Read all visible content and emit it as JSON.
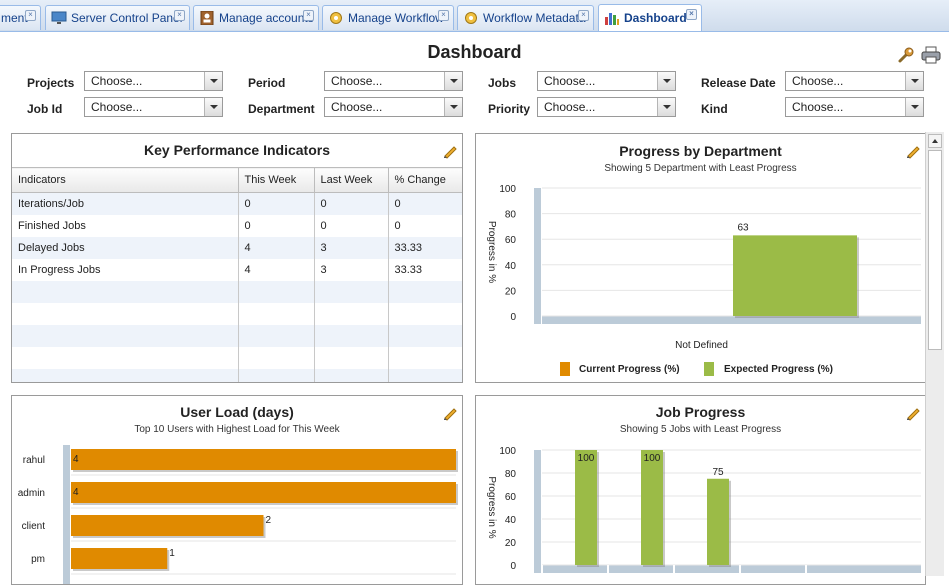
{
  "tabs": [
    {
      "label": "ment"
    },
    {
      "label": "Server Control Panel"
    },
    {
      "label": "Manage accounts"
    },
    {
      "label": "Manage Workflow"
    },
    {
      "label": "Workflow Metadata"
    },
    {
      "label": "Dashboard"
    }
  ],
  "page_title": "Dashboard",
  "filters": {
    "projects": {
      "label": "Projects",
      "value": "Choose..."
    },
    "period": {
      "label": "Period",
      "value": "Choose..."
    },
    "jobs": {
      "label": "Jobs",
      "value": "Choose..."
    },
    "release_date": {
      "label": "Release Date",
      "value": "Choose..."
    },
    "job_id": {
      "label": "Job Id",
      "value": "Choose..."
    },
    "department": {
      "label": "Department",
      "value": "Choose..."
    },
    "priority": {
      "label": "Priority",
      "value": "Choose..."
    },
    "kind": {
      "label": "Kind",
      "value": "Choose..."
    }
  },
  "kpi": {
    "title": "Key Performance Indicators",
    "headers": [
      "Indicators",
      "This Week",
      "Last Week",
      "% Change"
    ],
    "rows": [
      [
        "Iterations/Job",
        "0",
        "0",
        "0"
      ],
      [
        "Finished Jobs",
        "0",
        "0",
        "0"
      ],
      [
        "Delayed Jobs",
        "4",
        "3",
        "33.33"
      ],
      [
        "In Progress Jobs",
        "4",
        "3",
        "33.33"
      ]
    ]
  },
  "colors": {
    "current_progress": "#e08a00",
    "expected_progress": "#9bbb47",
    "user_load": "#e08a00",
    "axis_base": "#bccbd8"
  },
  "chart_data": [
    {
      "type": "bar",
      "title": "Progress by Department",
      "subtitle": "Showing 5 Department with Least Progress",
      "ylabel": "Progress in %",
      "ylim": [
        0,
        100
      ],
      "yticks": [
        "100",
        "80",
        "60",
        "40",
        "20",
        "0"
      ],
      "categories": [
        "Not Defined"
      ],
      "series": [
        {
          "name": "Current Progress (%)",
          "values": [
            0
          ]
        },
        {
          "name": "Expected Progress (%)",
          "values": [
            63
          ]
        }
      ],
      "data_labels": [
        "63"
      ],
      "legend": "bottom"
    },
    {
      "type": "bar",
      "orientation": "horizontal",
      "title": "User Load (days)",
      "subtitle": "Top 10 Users with Highest Load for This Week",
      "categories": [
        "rahul",
        "admin",
        "client",
        "pm"
      ],
      "values": [
        4,
        4,
        2,
        1
      ],
      "data_labels": [
        "4",
        "4",
        "2",
        "1"
      ],
      "xlim": [
        0,
        4
      ]
    },
    {
      "type": "bar",
      "title": "Job Progress",
      "subtitle": "Showing 5 Jobs with Least Progress",
      "ylabel": "Progress in %",
      "ylim": [
        0,
        100
      ],
      "yticks": [
        "100",
        "80",
        "60",
        "40",
        "20",
        "0"
      ],
      "values": [
        100,
        100,
        75
      ],
      "data_labels": [
        "100",
        "100",
        "75"
      ]
    }
  ]
}
